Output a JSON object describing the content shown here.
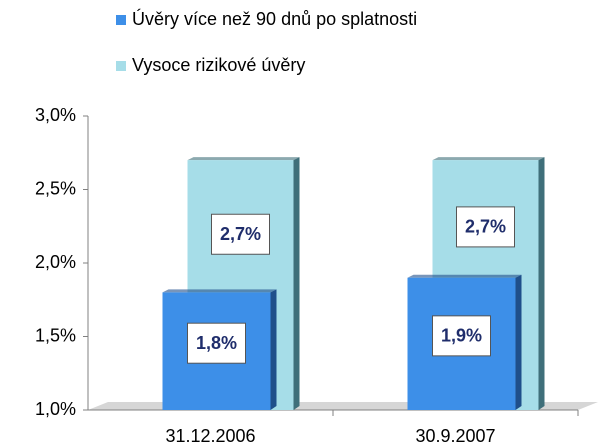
{
  "chart_data": {
    "type": "bar",
    "categories": [
      "31.12.2006",
      "30.9.2007"
    ],
    "series": [
      {
        "name": "Úvěry více než 90 dnů po splatnosti",
        "color": "#3d8fe8",
        "values": [
          1.8,
          1.9
        ],
        "value_labels": [
          "1,8%",
          "1,9%"
        ]
      },
      {
        "name": "Vysoce rizikové úvěry",
        "color": "#a6dde8",
        "values": [
          2.7,
          2.7
        ],
        "value_labels": [
          "2,7%",
          "2,7%"
        ]
      }
    ],
    "ylim": [
      1.0,
      3.0
    ],
    "yticks": [
      {
        "value": 1.0,
        "label": "1,0%"
      },
      {
        "value": 1.5,
        "label": "1,5%"
      },
      {
        "value": 2.0,
        "label": "2,0%"
      },
      {
        "value": 2.5,
        "label": "2,5%"
      },
      {
        "value": 3.0,
        "label": "3,0%"
      }
    ],
    "legend": "top"
  }
}
